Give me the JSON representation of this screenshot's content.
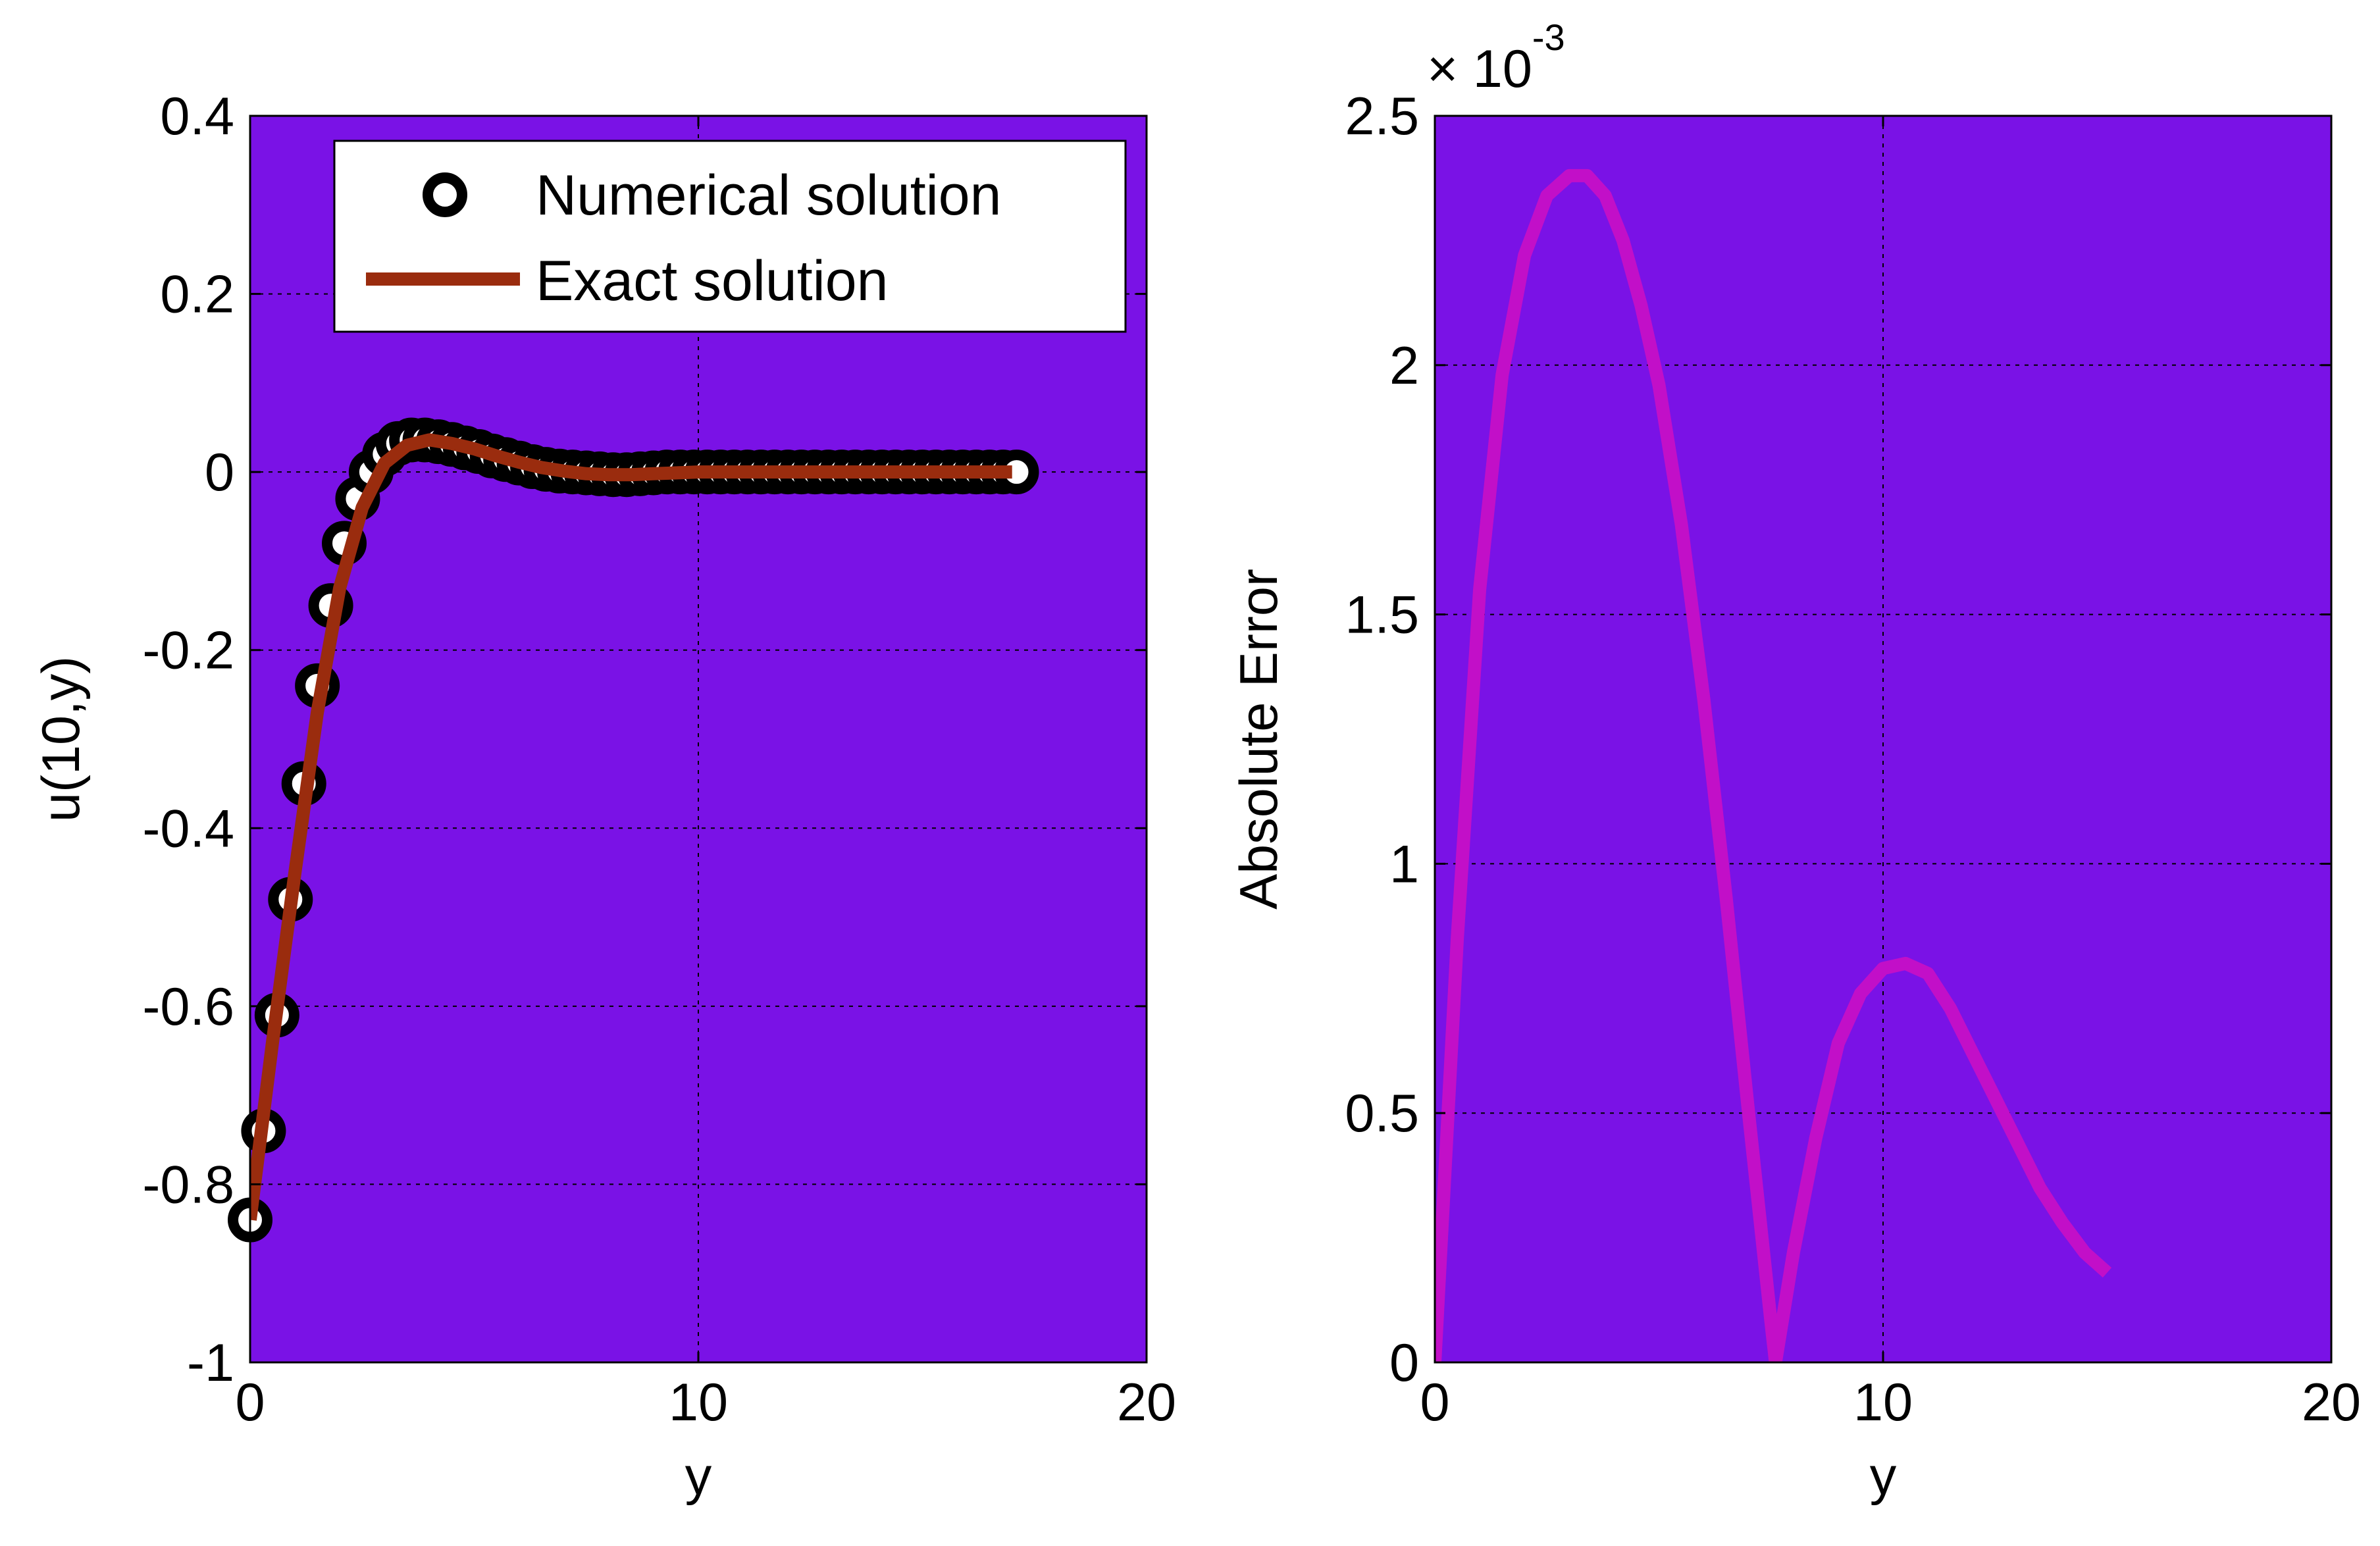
{
  "figure": {
    "background": "#ffffff",
    "axes_background": "#7a12e6",
    "grid_color": "#000000"
  },
  "chart_data": [
    {
      "type": "line",
      "title": "",
      "xlabel": "y",
      "ylabel": "u(10,y)",
      "xlim": [
        0,
        20
      ],
      "ylim": [
        -1,
        0.4
      ],
      "xticks": [
        0,
        10,
        20
      ],
      "xtick_labels": [
        "0",
        "10",
        "20"
      ],
      "yticks": [
        -1,
        -0.8,
        -0.6,
        -0.4,
        -0.2,
        0,
        0.2,
        0.4
      ],
      "ytick_labels": [
        "-1",
        "-0.8",
        "-0.6",
        "-0.4",
        "-0.2",
        "0",
        "0.2",
        "0.4"
      ],
      "grid": true,
      "legend_position": "top-right",
      "series": [
        {
          "name": "Numerical solution",
          "style": "markers",
          "marker": "circle",
          "color": "#000000",
          "x": [
            0,
            0.3,
            0.6,
            0.9,
            1.2,
            1.5,
            1.8,
            2.1,
            2.4,
            2.7,
            3.0,
            3.3,
            3.6,
            3.9,
            4.2,
            4.5,
            4.8,
            5.1,
            5.4,
            5.7,
            6.0,
            6.3,
            6.6,
            6.9,
            7.2,
            7.5,
            7.8,
            8.1,
            8.4,
            8.7,
            9.0,
            9.3,
            9.6,
            9.9,
            10.2,
            10.5,
            10.8,
            11.1,
            11.4,
            11.7,
            12.0,
            12.3,
            12.6,
            12.9,
            13.2,
            13.5,
            13.8,
            14.1,
            14.4,
            14.7,
            15.0,
            15.3,
            15.6,
            15.9,
            16.2,
            16.5,
            16.8,
            17.1
          ],
          "y": [
            -0.84,
            -0.74,
            -0.61,
            -0.48,
            -0.35,
            -0.24,
            -0.15,
            -0.08,
            -0.03,
            0.0,
            0.02,
            0.032,
            0.036,
            0.036,
            0.034,
            0.031,
            0.027,
            0.023,
            0.018,
            0.014,
            0.01,
            0.006,
            0.003,
            0.001,
            0.0,
            -0.001,
            -0.002,
            -0.003,
            -0.003,
            -0.002,
            -0.001,
            0.0,
            0.0,
            0.0,
            0.0,
            0.0,
            0.0,
            0.0,
            0.0,
            0.0,
            0.0,
            0.0,
            0.0,
            0.0,
            0.0,
            0.0,
            0.0,
            0.0,
            0.0,
            0.0,
            0.0,
            0.0,
            0.0,
            0.0,
            0.0,
            0.0,
            0.0,
            0.0
          ]
        },
        {
          "name": "Exact solution",
          "style": "line",
          "color": "#9a2c0e",
          "x": [
            0,
            0.5,
            1.0,
            1.5,
            2.0,
            2.5,
            3.0,
            3.5,
            4.0,
            4.5,
            5.0,
            5.5,
            6.0,
            6.5,
            7.0,
            7.5,
            8.0,
            8.5,
            9.0,
            9.5,
            10.0,
            11.0,
            12.0,
            13.0,
            14.0,
            15.0,
            16.0,
            17.0
          ],
          "y": [
            -0.84,
            -0.64,
            -0.45,
            -0.27,
            -0.13,
            -0.04,
            0.01,
            0.03,
            0.036,
            0.032,
            0.026,
            0.018,
            0.011,
            0.005,
            0.001,
            -0.002,
            -0.003,
            -0.003,
            -0.002,
            -0.001,
            0.0,
            0.0,
            0.0,
            0.0,
            0.0,
            0.0,
            0.0,
            0.0
          ]
        }
      ]
    },
    {
      "type": "line",
      "title": "",
      "xlabel": "y",
      "ylabel": "Absolute Error",
      "xlim": [
        0,
        20
      ],
      "ylim": [
        0,
        0.0025
      ],
      "xticks": [
        0,
        10,
        20
      ],
      "xtick_labels": [
        "0",
        "10",
        "20"
      ],
      "yticks": [
        0,
        0.0005,
        0.001,
        0.0015,
        0.002,
        0.0025
      ],
      "ytick_labels": [
        "0",
        "0.5",
        "1",
        "1.5",
        "2",
        "2.5"
      ],
      "y_exponent_base": "× 10",
      "y_exponent_power": "-3",
      "grid": true,
      "series": [
        {
          "style": "line",
          "color": "#c20fc8",
          "x": [
            0,
            0.5,
            1.0,
            1.5,
            2.0,
            2.5,
            3.0,
            3.4,
            3.8,
            4.2,
            4.6,
            5.0,
            5.5,
            6.0,
            6.5,
            7.0,
            7.5,
            7.6,
            8.0,
            8.5,
            9.0,
            9.5,
            10.0,
            10.5,
            11.0,
            11.5,
            12.0,
            12.5,
            13.0,
            13.5,
            14.0,
            14.5,
            15.0
          ],
          "y": [
            0,
            0.00085,
            0.00155,
            0.00198,
            0.00222,
            0.00234,
            0.00238,
            0.00238,
            0.00234,
            0.00225,
            0.00212,
            0.00196,
            0.00168,
            0.00133,
            0.00093,
            0.0005,
            8e-05,
            0.0,
            0.00022,
            0.00045,
            0.00064,
            0.00074,
            0.00079,
            0.0008,
            0.00078,
            0.00071,
            0.00062,
            0.00053,
            0.00044,
            0.00035,
            0.00028,
            0.00022,
            0.00018
          ]
        }
      ]
    }
  ]
}
